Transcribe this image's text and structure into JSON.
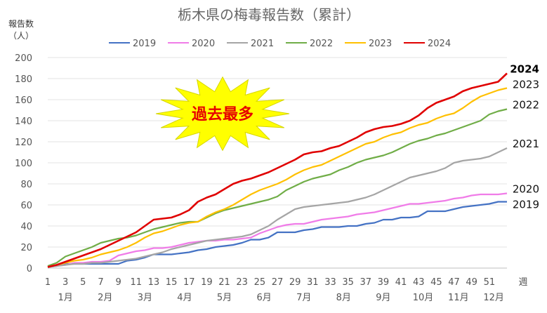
{
  "chart_data": {
    "type": "line",
    "title": "栃木県の梅毒報告数（累計）",
    "ylabel_line1": "報告数",
    "ylabel_line2": "（人）",
    "xlabel": "週",
    "ylim": [
      0,
      200
    ],
    "yticks": [
      0,
      20,
      40,
      60,
      80,
      100,
      120,
      140,
      160,
      180,
      200
    ],
    "x_ticks": [
      1,
      3,
      5,
      7,
      9,
      11,
      13,
      15,
      17,
      19,
      21,
      23,
      25,
      27,
      29,
      31,
      33,
      35,
      37,
      39,
      41,
      43,
      45,
      47,
      49,
      51
    ],
    "month_labels": [
      {
        "label": "1月",
        "week": 3
      },
      {
        "label": "2月",
        "week": 7.5
      },
      {
        "label": "3月",
        "week": 12
      },
      {
        "label": "4月",
        "week": 16.5
      },
      {
        "label": "5月",
        "week": 21
      },
      {
        "label": "6月",
        "week": 25.5
      },
      {
        "label": "7月",
        "week": 30
      },
      {
        "label": "8月",
        "week": 34.5
      },
      {
        "label": "9月",
        "week": 39
      },
      {
        "label": "10月",
        "week": 43.5
      },
      {
        "label": "11月",
        "week": 47.5
      },
      {
        "label": "12月",
        "week": 51.5
      }
    ],
    "grid": "horizontal",
    "legend_position": "top",
    "annotation": "過去最多",
    "series": [
      {
        "name": "2019",
        "color": "#4472c4",
        "bold_label": false,
        "values": [
          1,
          2,
          4,
          4,
          4,
          4,
          4,
          4,
          4,
          7,
          8,
          10,
          13,
          13,
          13,
          14,
          15,
          17,
          18,
          20,
          21,
          22,
          24,
          27,
          27,
          29,
          34,
          34,
          34,
          36,
          37,
          39,
          39,
          39,
          40,
          40,
          42,
          43,
          46,
          46,
          48,
          48,
          49,
          54,
          54,
          54,
          56,
          58,
          59,
          60,
          61,
          63,
          63
        ]
      },
      {
        "name": "2020",
        "color": "#f07ce8",
        "bold_label": false,
        "values": [
          1,
          2,
          3,
          5,
          5,
          6,
          6,
          7,
          12,
          14,
          16,
          17,
          19,
          19,
          20,
          22,
          24,
          25,
          26,
          26,
          27,
          27,
          28,
          29,
          33,
          36,
          39,
          41,
          42,
          42,
          44,
          46,
          47,
          48,
          49,
          51,
          52,
          53,
          55,
          57,
          59,
          61,
          61,
          62,
          63,
          64,
          66,
          67,
          69,
          70,
          70,
          70,
          71
        ]
      },
      {
        "name": "2021",
        "color": "#a5a5a5",
        "bold_label": false,
        "values": [
          1,
          2,
          3,
          4,
          4,
          5,
          5,
          6,
          7,
          8,
          9,
          11,
          13,
          15,
          18,
          20,
          22,
          24,
          26,
          27,
          28,
          29,
          30,
          32,
          36,
          40,
          46,
          51,
          56,
          58,
          59,
          60,
          61,
          62,
          63,
          65,
          67,
          70,
          74,
          78,
          82,
          86,
          88,
          90,
          92,
          95,
          100,
          102,
          103,
          104,
          106,
          110,
          114
        ]
      },
      {
        "name": "2022",
        "color": "#70ad47",
        "bold_label": false,
        "values": [
          2,
          5,
          11,
          14,
          17,
          20,
          24,
          26,
          28,
          29,
          31,
          34,
          37,
          39,
          41,
          43,
          44,
          44,
          48,
          52,
          55,
          57,
          59,
          61,
          63,
          65,
          68,
          74,
          78,
          82,
          85,
          87,
          89,
          93,
          96,
          100,
          103,
          105,
          107,
          110,
          114,
          118,
          121,
          123,
          126,
          128,
          131,
          134,
          137,
          140,
          146,
          149,
          151
        ]
      },
      {
        "name": "2023",
        "color": "#ffc000",
        "bold_label": false,
        "values": [
          1,
          3,
          5,
          7,
          8,
          10,
          13,
          15,
          17,
          20,
          24,
          29,
          33,
          35,
          38,
          41,
          43,
          44,
          49,
          53,
          56,
          60,
          65,
          70,
          74,
          77,
          80,
          84,
          89,
          93,
          96,
          98,
          102,
          106,
          110,
          114,
          118,
          120,
          124,
          127,
          129,
          133,
          136,
          138,
          142,
          145,
          147,
          152,
          158,
          163,
          166,
          169,
          171
        ]
      },
      {
        "name": "2024",
        "color": "#e00000",
        "bold_label": true,
        "values": [
          1,
          3,
          6,
          9,
          12,
          15,
          18,
          22,
          26,
          30,
          34,
          40,
          46,
          47,
          48,
          51,
          55,
          63,
          67,
          70,
          75,
          80,
          83,
          85,
          88,
          91,
          95,
          99,
          103,
          108,
          110,
          111,
          114,
          116,
          120,
          124,
          129,
          132,
          134,
          135,
          137,
          140,
          145,
          152,
          157,
          160,
          163,
          168,
          171,
          173,
          175,
          177,
          185
        ]
      }
    ]
  }
}
